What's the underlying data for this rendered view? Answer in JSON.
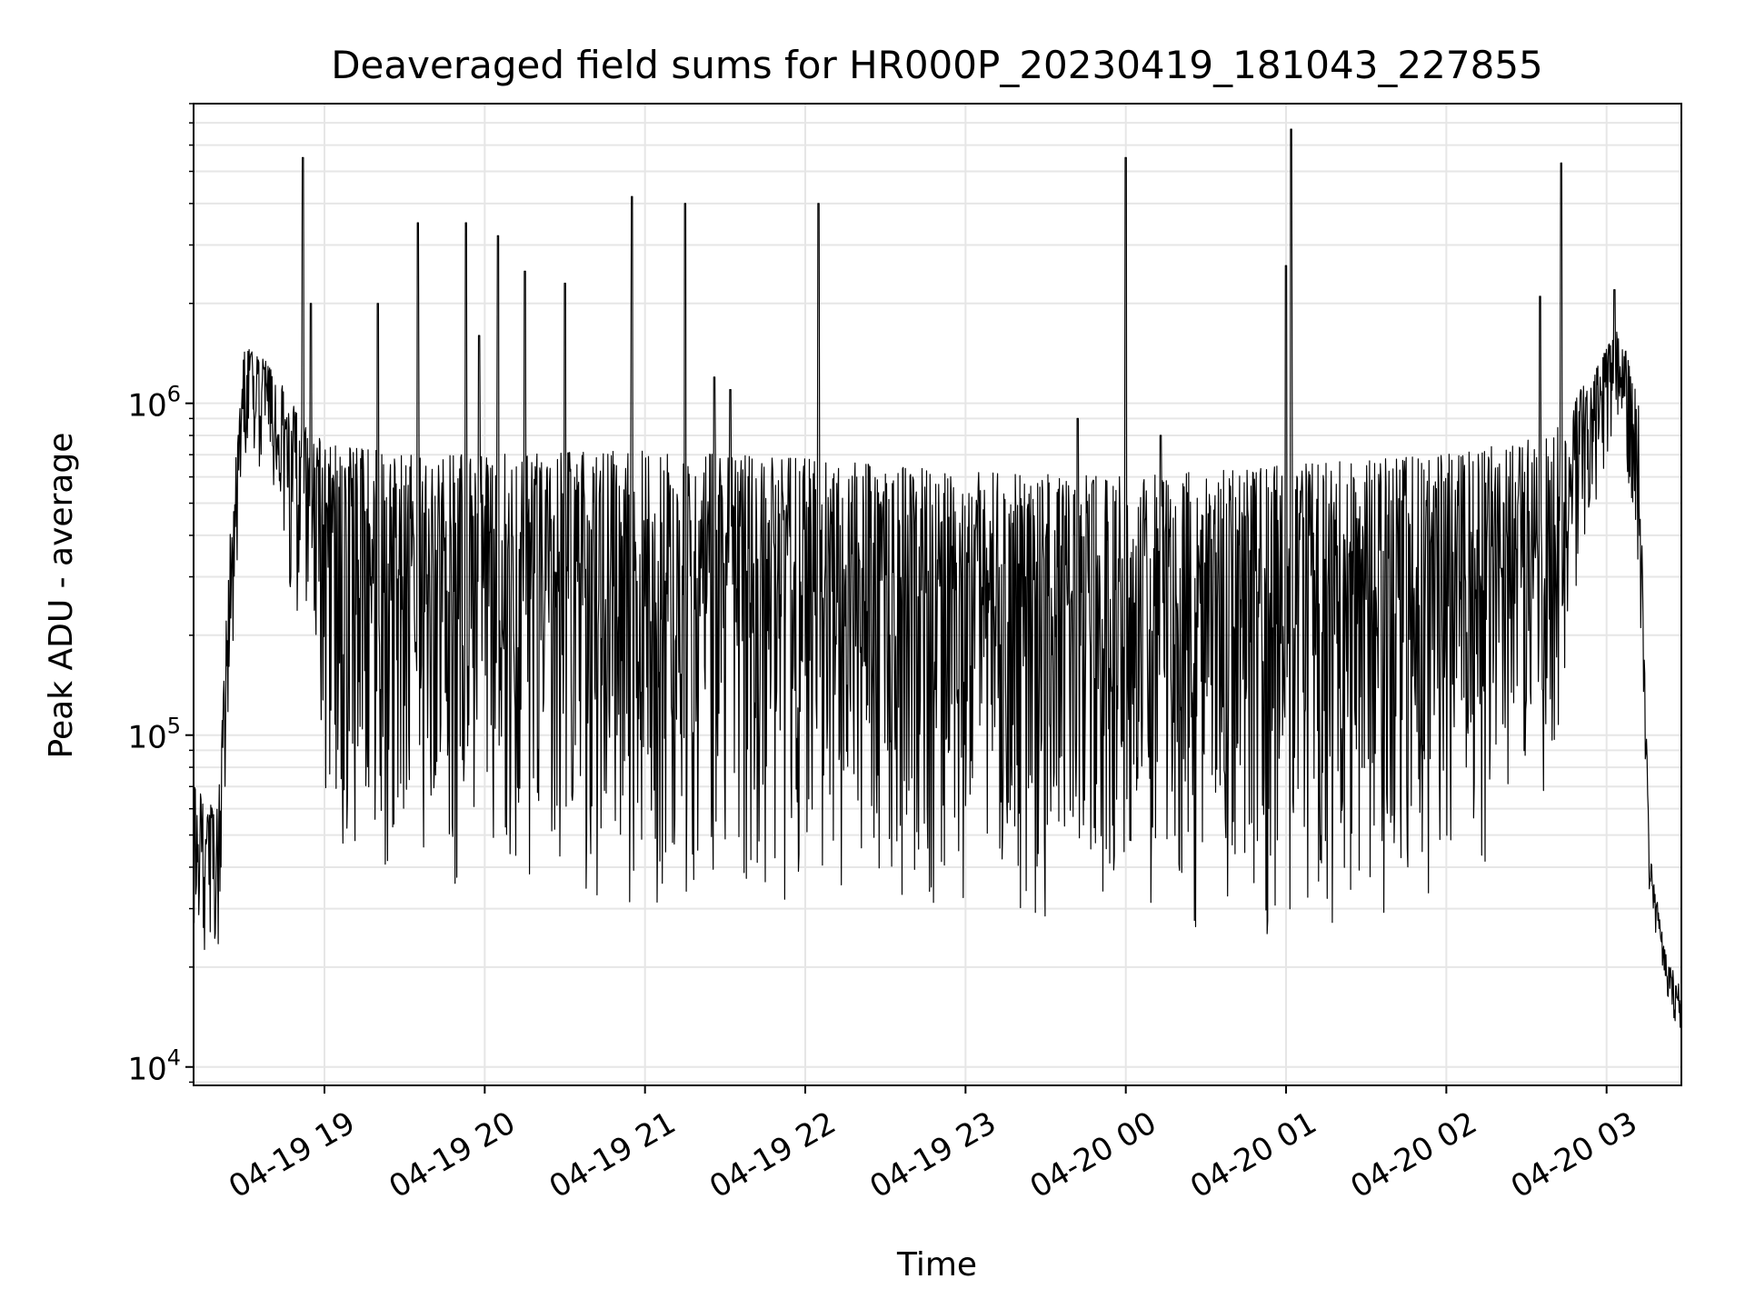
{
  "chart_data": {
    "type": "line",
    "title": "Deaveraged field sums for HR000P_20230419_181043_227855",
    "xlabel": "Time",
    "ylabel": "Peak ADU - average",
    "yscale": "log",
    "xlim": [
      "2023-04-19T18:11:00",
      "2023-04-20T03:28:00"
    ],
    "ylim": [
      8800,
      8000000
    ],
    "grid": true,
    "legend": "none",
    "line_color": "#000000",
    "x_ticks": [
      {
        "value": "2023-04-19T19:00:00",
        "label": "04-19 19"
      },
      {
        "value": "2023-04-19T20:00:00",
        "label": "04-19 20"
      },
      {
        "value": "2023-04-19T21:00:00",
        "label": "04-19 21"
      },
      {
        "value": "2023-04-19T22:00:00",
        "label": "04-19 22"
      },
      {
        "value": "2023-04-19T23:00:00",
        "label": "04-19 23"
      },
      {
        "value": "2023-04-20T00:00:00",
        "label": "04-20 00"
      },
      {
        "value": "2023-04-20T01:00:00",
        "label": "04-20 01"
      },
      {
        "value": "2023-04-20T02:00:00",
        "label": "04-20 02"
      },
      {
        "value": "2023-04-20T03:00:00",
        "label": "04-20 03"
      }
    ],
    "y_ticks": [
      {
        "value": 10000,
        "base": "10",
        "exp": "4"
      },
      {
        "value": 100000,
        "base": "10",
        "exp": "5"
      },
      {
        "value": 1000000,
        "base": "10",
        "exp": "6"
      }
    ],
    "envelope": [
      {
        "x": "2023-04-19T18:11:00",
        "low": 22000,
        "high": 70000
      },
      {
        "x": "2023-04-19T18:20:00",
        "low": 17000,
        "high": 60000
      },
      {
        "x": "2023-04-19T18:25:00",
        "low": 100000,
        "high": 480000
      },
      {
        "x": "2023-04-19T18:30:00",
        "low": 700000,
        "high": 1500000
      },
      {
        "x": "2023-04-19T18:40:00",
        "low": 600000,
        "high": 1300000
      },
      {
        "x": "2023-04-19T18:45:00",
        "low": 300000,
        "high": 1100000
      },
      {
        "x": "2023-04-19T18:55:00",
        "low": 120000,
        "high": 800000
      },
      {
        "x": "2023-04-19T19:05:00",
        "low": 40000,
        "high": 750000
      },
      {
        "x": "2023-04-19T19:30:00",
        "low": 35000,
        "high": 700000
      },
      {
        "x": "2023-04-19T20:00:00",
        "low": 32000,
        "high": 700000
      },
      {
        "x": "2023-04-19T21:00:00",
        "low": 30000,
        "high": 720000
      },
      {
        "x": "2023-04-19T22:00:00",
        "low": 32000,
        "high": 680000
      },
      {
        "x": "2023-04-19T23:00:00",
        "low": 28000,
        "high": 620000
      },
      {
        "x": "2023-04-20T00:00:00",
        "low": 24000,
        "high": 600000
      },
      {
        "x": "2023-04-20T01:00:00",
        "low": 25000,
        "high": 650000
      },
      {
        "x": "2023-04-20T02:00:00",
        "low": 28000,
        "high": 700000
      },
      {
        "x": "2023-04-20T02:40:00",
        "low": 60000,
        "high": 800000
      },
      {
        "x": "2023-04-20T02:50:00",
        "low": 300000,
        "high": 1100000
      },
      {
        "x": "2023-04-20T03:05:00",
        "low": 800000,
        "high": 1700000
      },
      {
        "x": "2023-04-20T03:12:00",
        "low": 300000,
        "high": 1000000
      },
      {
        "x": "2023-04-20T03:16:00",
        "low": 32000,
        "high": 45000
      },
      {
        "x": "2023-04-20T03:22:00",
        "low": 15000,
        "high": 22000
      },
      {
        "x": "2023-04-20T03:28:00",
        "low": 12000,
        "high": 17000
      }
    ],
    "spikes": [
      {
        "x": "2023-04-19T18:52:00",
        "y": 5500000
      },
      {
        "x": "2023-04-19T18:55:00",
        "y": 2000000
      },
      {
        "x": "2023-04-19T19:20:00",
        "y": 2000000
      },
      {
        "x": "2023-04-19T19:35:00",
        "y": 3500000
      },
      {
        "x": "2023-04-19T19:53:00",
        "y": 3500000
      },
      {
        "x": "2023-04-19T19:58:00",
        "y": 1600000
      },
      {
        "x": "2023-04-19T20:05:00",
        "y": 3200000
      },
      {
        "x": "2023-04-19T20:15:00",
        "y": 2500000
      },
      {
        "x": "2023-04-19T20:30:00",
        "y": 2300000
      },
      {
        "x": "2023-04-19T20:55:00",
        "y": 4200000
      },
      {
        "x": "2023-04-19T21:15:00",
        "y": 4000000
      },
      {
        "x": "2023-04-19T21:26:00",
        "y": 1200000
      },
      {
        "x": "2023-04-19T21:32:00",
        "y": 1100000
      },
      {
        "x": "2023-04-19T22:05:00",
        "y": 4000000
      },
      {
        "x": "2023-04-19T23:42:00",
        "y": 900000
      },
      {
        "x": "2023-04-20T00:00:00",
        "y": 5500000
      },
      {
        "x": "2023-04-20T00:13:00",
        "y": 800000
      },
      {
        "x": "2023-04-20T01:02:00",
        "y": 6700000
      },
      {
        "x": "2023-04-20T01:00:00",
        "y": 2600000
      },
      {
        "x": "2023-04-20T02:35:00",
        "y": 2100000
      },
      {
        "x": "2023-04-20T02:43:00",
        "y": 5300000
      },
      {
        "x": "2023-04-20T03:03:00",
        "y": 2200000
      }
    ]
  }
}
